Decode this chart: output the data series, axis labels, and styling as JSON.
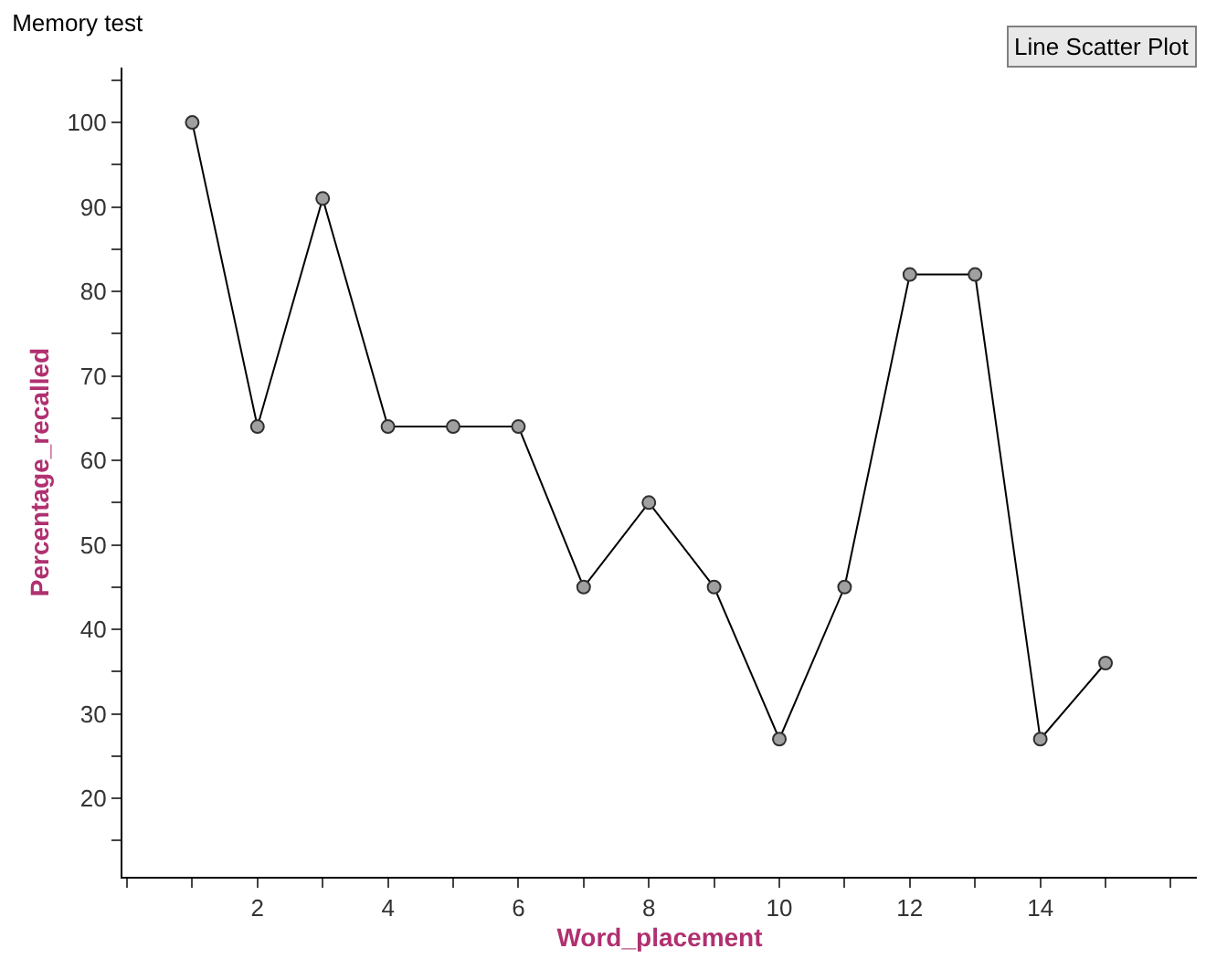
{
  "chart_data": {
    "type": "line",
    "title": "Memory test",
    "xlabel": "Word_placement",
    "ylabel": "Percentage_recalled",
    "annotations": [
      "Line Scatter Plot"
    ],
    "x": [
      1,
      2,
      3,
      4,
      5,
      6,
      7,
      8,
      9,
      10,
      11,
      12,
      13,
      14,
      15
    ],
    "series": [
      {
        "color": "#000000",
        "values": [
          100,
          64,
          91,
          64,
          64,
          64,
          45,
          55,
          45,
          27,
          45,
          82,
          82,
          27,
          36
        ]
      }
    ],
    "marker": "circle",
    "line_style": "solid",
    "xlim": [
      -0.07,
      16.4
    ],
    "ylim": [
      10.7,
      106.5
    ],
    "xticks": [
      {
        "value": 0,
        "label": null
      },
      {
        "value": 1,
        "label": null
      },
      2,
      {
        "value": 3,
        "label": null
      },
      4,
      {
        "value": 5,
        "label": null
      },
      6,
      {
        "value": 7,
        "label": null
      },
      8,
      {
        "value": 9,
        "label": null
      },
      10,
      {
        "value": 11,
        "label": null
      },
      12,
      {
        "value": 13,
        "label": null
      },
      14,
      {
        "value": 15,
        "label": null
      },
      {
        "value": 16,
        "label": null
      }
    ],
    "yticks": [
      {
        "value": 15,
        "label": null
      },
      20,
      {
        "value": 25,
        "label": null
      },
      30,
      {
        "value": 35,
        "label": null
      },
      40,
      {
        "value": 45,
        "label": null
      },
      50,
      {
        "value": 55,
        "label": null
      },
      60,
      {
        "value": 65,
        "label": null
      },
      70,
      {
        "value": 75,
        "label": null
      },
      80,
      {
        "value": 85,
        "label": null
      },
      90,
      {
        "value": 95,
        "label": null
      },
      100,
      {
        "value": 105,
        "label": null
      }
    ]
  }
}
